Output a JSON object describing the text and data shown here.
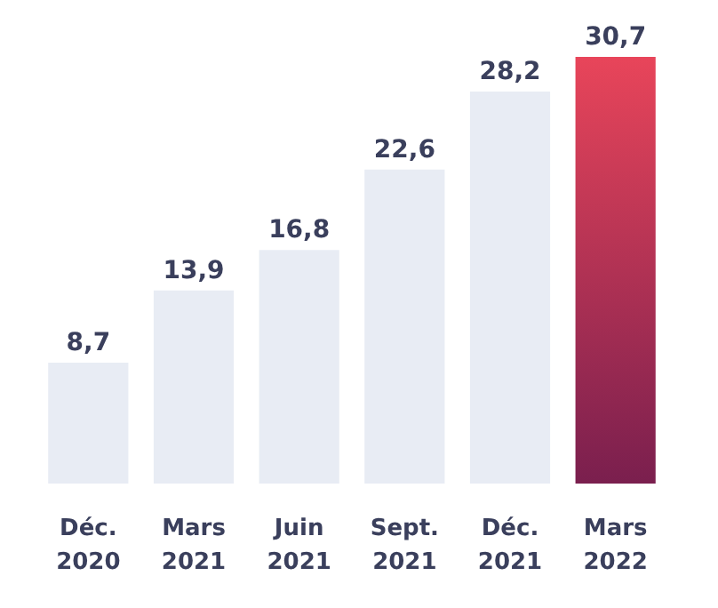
{
  "chart_data": {
    "type": "bar",
    "categories": [
      "Déc.\n2020",
      "Mars\n2021",
      "Juin\n2021",
      "Sept.\n2021",
      "Déc.\n2021",
      "Mars\n2022"
    ],
    "values": [
      8.7,
      13.9,
      16.8,
      22.6,
      28.2,
      30.7
    ],
    "value_labels": [
      "8,7",
      "13,9",
      "16,8",
      "22,6",
      "28,2",
      "30,7"
    ],
    "colors": [
      "#e8ecf4",
      "#e8ecf4",
      "#e8ecf4",
      "#e8ecf4",
      "#e8ecf4",
      "#b3294f"
    ]
  }
}
